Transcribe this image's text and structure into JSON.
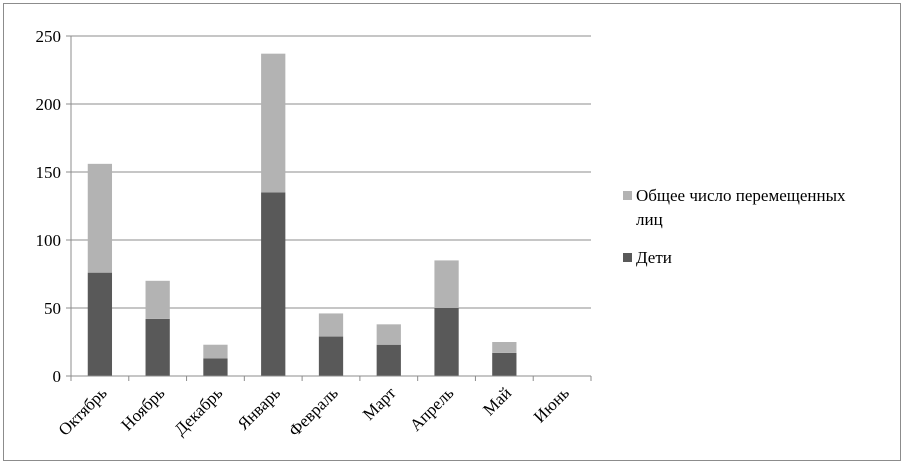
{
  "chart_data": {
    "type": "bar",
    "stacked": true,
    "title": "",
    "xlabel": "",
    "ylabel": "",
    "categories": [
      "Октябрь",
      "Ноябрь",
      "Декабрь",
      "Январь",
      "Февраль",
      "Март",
      "Апрель",
      "Май",
      "Июнь"
    ],
    "series": [
      {
        "name": "Дети",
        "color": "#595959",
        "values": [
          76,
          42,
          13,
          135,
          29,
          23,
          50,
          17,
          0
        ]
      },
      {
        "name": "Общее число перемещенных лиц",
        "color": "#b3b3b3",
        "values": [
          80,
          28,
          10,
          102,
          17,
          15,
          35,
          8,
          0
        ]
      }
    ],
    "legend_items": [
      {
        "line1": "Общее число перемещенных",
        "line2": "лиц",
        "color": "#b3b3b3"
      },
      {
        "line1": "Дети",
        "line2": "",
        "color": "#595959"
      }
    ],
    "ylim": [
      0,
      250
    ],
    "yticks": [
      "0",
      "50",
      "100",
      "150",
      "200",
      "250"
    ],
    "grid": true,
    "legend_position": "right"
  }
}
